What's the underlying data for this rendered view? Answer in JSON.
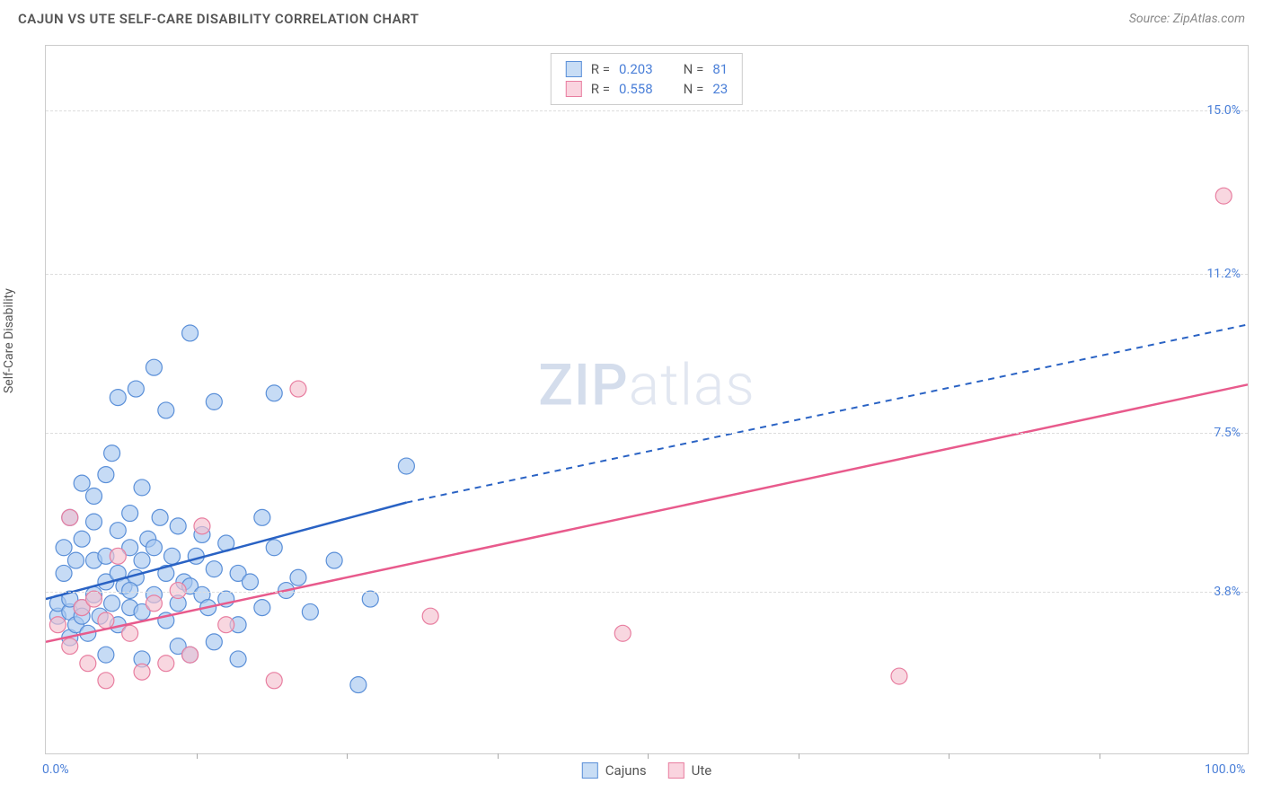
{
  "title": "CAJUN VS UTE SELF-CARE DISABILITY CORRELATION CHART",
  "source": "Source: ZipAtlas.com",
  "watermark_zip": "ZIP",
  "watermark_atlas": "atlas",
  "y_axis_label": "Self-Care Disability",
  "chart": {
    "type": "scatter",
    "xlim": [
      0,
      100
    ],
    "ylim": [
      0,
      16.5
    ],
    "x_ticks": [
      {
        "pos": 0,
        "label": "0.0%"
      },
      {
        "pos": 100,
        "label": "100.0%"
      }
    ],
    "x_minor_ticks": [
      12.5,
      25,
      37.5,
      50,
      62.5,
      75,
      87.5
    ],
    "y_ticks": [
      {
        "pos": 3.8,
        "label": "3.8%"
      },
      {
        "pos": 7.5,
        "label": "7.5%"
      },
      {
        "pos": 11.2,
        "label": "11.2%"
      },
      {
        "pos": 15.0,
        "label": "15.0%"
      }
    ],
    "grid_color": "#dddddd",
    "background_color": "#ffffff",
    "series": [
      {
        "name": "Cajuns",
        "R": "0.203",
        "N": "81",
        "fill": "#a8c8f0",
        "stroke": "#5a8fd8",
        "swatch_fill": "#c8ddf5",
        "swatch_border": "#5a8fd8",
        "marker_radius": 9,
        "marker_opacity": 0.65,
        "line": {
          "solid_from": [
            0,
            3.6
          ],
          "solid_to": [
            30,
            5.85
          ],
          "dash_to": [
            100,
            10.0
          ],
          "color": "#2962c4",
          "width": 2.5
        },
        "points": [
          [
            1,
            3.2
          ],
          [
            1,
            3.5
          ],
          [
            1.5,
            4.2
          ],
          [
            2,
            2.7
          ],
          [
            2,
            3.3
          ],
          [
            2,
            3.6
          ],
          [
            2.5,
            4.5
          ],
          [
            2.5,
            3.0
          ],
          [
            3,
            5.0
          ],
          [
            3,
            3.4
          ],
          [
            3,
            3.2
          ],
          [
            3.5,
            2.8
          ],
          [
            4,
            4.5
          ],
          [
            4,
            3.7
          ],
          [
            4,
            5.4
          ],
          [
            4.5,
            3.2
          ],
          [
            5,
            4.0
          ],
          [
            5,
            4.6
          ],
          [
            5,
            2.3
          ],
          [
            5,
            6.5
          ],
          [
            5.5,
            3.5
          ],
          [
            6,
            4.2
          ],
          [
            6,
            5.2
          ],
          [
            6,
            3.0
          ],
          [
            6.5,
            3.9
          ],
          [
            7,
            4.8
          ],
          [
            7,
            5.6
          ],
          [
            7,
            3.4
          ],
          [
            7.5,
            8.5
          ],
          [
            7.5,
            4.1
          ],
          [
            8,
            4.5
          ],
          [
            8,
            3.3
          ],
          [
            8,
            6.2
          ],
          [
            8,
            2.2
          ],
          [
            8.5,
            5.0
          ],
          [
            9,
            4.8
          ],
          [
            9,
            3.7
          ],
          [
            9.5,
            5.5
          ],
          [
            10,
            3.1
          ],
          [
            10,
            4.2
          ],
          [
            10,
            8.0
          ],
          [
            10.5,
            4.6
          ],
          [
            11,
            3.5
          ],
          [
            11,
            2.5
          ],
          [
            11,
            5.3
          ],
          [
            11.5,
            4.0
          ],
          [
            12,
            3.9
          ],
          [
            12,
            2.3
          ],
          [
            12,
            9.8
          ],
          [
            12.5,
            4.6
          ],
          [
            13,
            3.7
          ],
          [
            13,
            5.1
          ],
          [
            13.5,
            3.4
          ],
          [
            14,
            4.3
          ],
          [
            14,
            2.6
          ],
          [
            14,
            8.2
          ],
          [
            15,
            3.6
          ],
          [
            15,
            4.9
          ],
          [
            16,
            4.2
          ],
          [
            16,
            3.0
          ],
          [
            16,
            2.2
          ],
          [
            17,
            4.0
          ],
          [
            18,
            3.4
          ],
          [
            18,
            5.5
          ],
          [
            19,
            4.8
          ],
          [
            19,
            8.4
          ],
          [
            20,
            3.8
          ],
          [
            21,
            4.1
          ],
          [
            22,
            3.3
          ],
          [
            24,
            4.5
          ],
          [
            26,
            1.6
          ],
          [
            27,
            3.6
          ],
          [
            30,
            6.7
          ],
          [
            1.5,
            4.8
          ],
          [
            3,
            6.3
          ],
          [
            5.5,
            7.0
          ],
          [
            6,
            8.3
          ],
          [
            7,
            3.8
          ],
          [
            9,
            9.0
          ],
          [
            2,
            5.5
          ],
          [
            4,
            6.0
          ]
        ]
      },
      {
        "name": "Ute",
        "R": "0.558",
        "N": "23",
        "fill": "#f5c2d0",
        "stroke": "#e87ea0",
        "swatch_fill": "#fad4df",
        "swatch_border": "#e87ea0",
        "marker_radius": 9,
        "marker_opacity": 0.65,
        "line": {
          "solid_from": [
            0,
            2.6
          ],
          "solid_to": [
            100,
            8.6
          ],
          "color": "#e85a8c",
          "width": 2.5
        },
        "points": [
          [
            1,
            3.0
          ],
          [
            2,
            2.5
          ],
          [
            2,
            5.5
          ],
          [
            3,
            3.4
          ],
          [
            3.5,
            2.1
          ],
          [
            4,
            3.6
          ],
          [
            5,
            1.7
          ],
          [
            5,
            3.1
          ],
          [
            6,
            4.6
          ],
          [
            7,
            2.8
          ],
          [
            8,
            1.9
          ],
          [
            9,
            3.5
          ],
          [
            10,
            2.1
          ],
          [
            11,
            3.8
          ],
          [
            12,
            2.3
          ],
          [
            13,
            5.3
          ],
          [
            15,
            3.0
          ],
          [
            19,
            1.7
          ],
          [
            21,
            8.5
          ],
          [
            32,
            3.2
          ],
          [
            48,
            2.8
          ],
          [
            71,
            1.8
          ],
          [
            98,
            13.0
          ]
        ]
      }
    ]
  },
  "legend_top": {
    "r_label": "R =",
    "n_label": "N ="
  },
  "legend_bottom": [
    {
      "label": "Cajuns",
      "fill": "#c8ddf5",
      "border": "#5a8fd8"
    },
    {
      "label": "Ute",
      "fill": "#fad4df",
      "border": "#e87ea0"
    }
  ]
}
